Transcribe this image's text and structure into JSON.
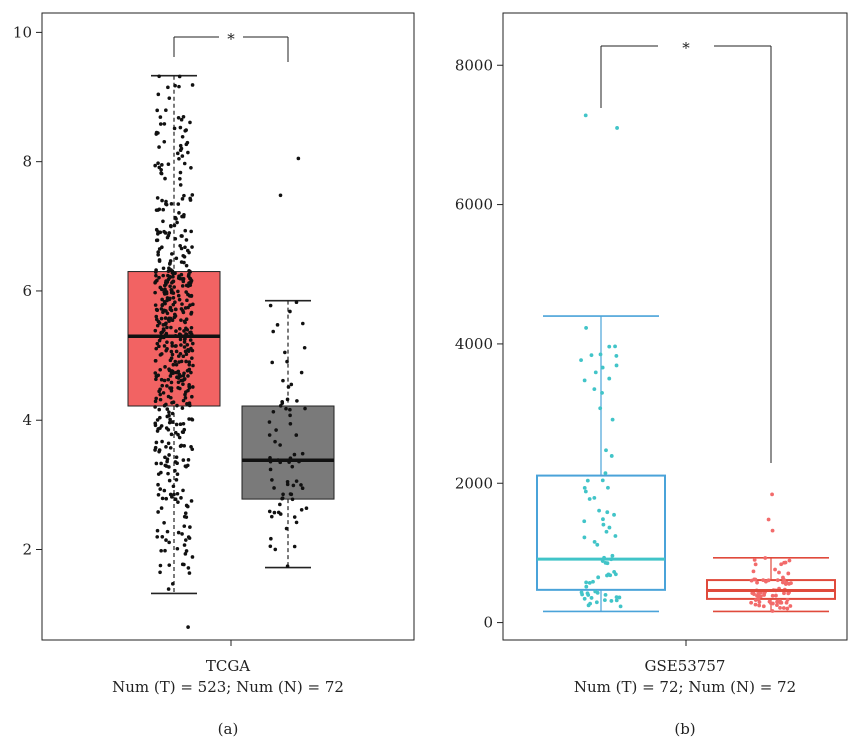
{
  "colors": {
    "tcga_tumor": "#f26363",
    "tcga_normal": "#7a7a7a",
    "geo_tumor": "#4aa3d9",
    "geo_normal": "#e04a3c",
    "geo_tumor_points": "#41c4c8",
    "geo_normal_points": "#f26b6b"
  },
  "panels": [
    {
      "chart_data": {
        "type": "box",
        "xlabel": "TCGA",
        "subtitle": "Num (T) = 523; Num (N) = 72",
        "caption": "(a)",
        "significance": "*",
        "ylim": [
          0.6,
          10.3
        ],
        "yticks": [
          2,
          4,
          6,
          8,
          10
        ],
        "series": [
          {
            "whisker_low": 1.32,
            "q1": 4.22,
            "median": 5.3,
            "q3": 6.3,
            "whisker_high": 9.33,
            "n_points": 523,
            "outliers": [
              0.8
            ]
          },
          {
            "whisker_low": 1.72,
            "q1": 2.78,
            "median": 3.38,
            "q3": 4.22,
            "whisker_high": 5.85,
            "n_points": 72,
            "outliers": [
              7.48,
              8.05
            ]
          }
        ]
      }
    },
    {
      "chart_data": {
        "type": "box",
        "xlabel": "GSE53757",
        "subtitle": "Num (T) = 72; Num (N) = 72",
        "caption": "(b)",
        "significance": "*",
        "ylim": [
          -250,
          8750
        ],
        "yticks": [
          0,
          2000,
          4000,
          6000,
          8000
        ],
        "series": [
          {
            "whisker_low": 160,
            "q1": 470,
            "median": 910,
            "q3": 2110,
            "whisker_high": 4400,
            "n_points": 72,
            "outliers": [
              7100,
              7280
            ]
          },
          {
            "whisker_low": 160,
            "q1": 340,
            "median": 460,
            "q3": 610,
            "whisker_high": 930,
            "n_points": 72,
            "outliers": [
              1320,
              1480,
              1840
            ]
          }
        ]
      }
    }
  ]
}
